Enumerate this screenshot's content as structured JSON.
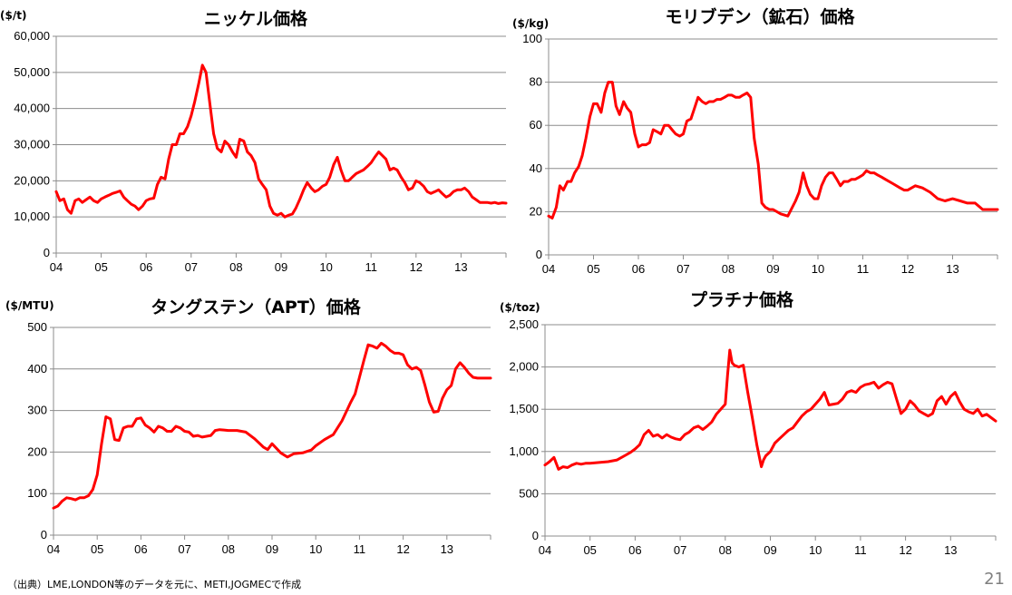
{
  "page": {
    "source": "（出典）LME,LONDON等のデータを元に、METI,JOGMECで作成",
    "page_number": "21"
  },
  "chart_data": [
    {
      "id": "nickel",
      "type": "line",
      "title": "ニッケル価格",
      "unit": "($/t)",
      "ylim": [
        0,
        60000
      ],
      "yticks": [
        0,
        10000,
        20000,
        30000,
        40000,
        50000,
        60000
      ],
      "ytick_labels": [
        "0",
        "10,000",
        "20,000",
        "30,000",
        "40,000",
        "50,000",
        "60,000"
      ],
      "xlim": [
        2004,
        2014
      ],
      "xticks": [
        2004,
        2005,
        2006,
        2007,
        2008,
        2009,
        2010,
        2011,
        2012,
        2013
      ],
      "xtick_labels": [
        "04",
        "05",
        "06",
        "07",
        "08",
        "09",
        "10",
        "11",
        "12",
        "13"
      ],
      "grid": true,
      "color": "#ff0000",
      "series": [
        {
          "x": [
            2004.0,
            2004.08,
            2004.17,
            2004.25,
            2004.33,
            2004.42,
            2004.5,
            2004.58,
            2004.67,
            2004.75,
            2004.83,
            2004.92,
            2005.0,
            2005.08,
            2005.17,
            2005.25,
            2005.33,
            2005.42,
            2005.5,
            2005.58,
            2005.67,
            2005.75,
            2005.83,
            2005.92,
            2006.0,
            2006.08,
            2006.17,
            2006.25,
            2006.33,
            2006.42,
            2006.5,
            2006.58,
            2006.67,
            2006.75,
            2006.83,
            2006.92,
            2007.0,
            2007.08,
            2007.17,
            2007.25,
            2007.33,
            2007.42,
            2007.5,
            2007.58,
            2007.67,
            2007.75,
            2007.83,
            2007.92,
            2008.0,
            2008.08,
            2008.17,
            2008.25,
            2008.33,
            2008.42,
            2008.5,
            2008.58,
            2008.67,
            2008.75,
            2008.83,
            2008.92,
            2009.0,
            2009.08,
            2009.17,
            2009.25,
            2009.33,
            2009.42,
            2009.5,
            2009.58,
            2009.67,
            2009.75,
            2009.83,
            2009.92,
            2010.0,
            2010.08,
            2010.17,
            2010.25,
            2010.33,
            2010.42,
            2010.5,
            2010.58,
            2010.67,
            2010.75,
            2010.83,
            2010.92,
            2011.0,
            2011.08,
            2011.17,
            2011.25,
            2011.33,
            2011.42,
            2011.5,
            2011.58,
            2011.67,
            2011.75,
            2011.83,
            2011.92,
            2012.0,
            2012.08,
            2012.17,
            2012.25,
            2012.33,
            2012.42,
            2012.5,
            2012.58,
            2012.67,
            2012.75,
            2012.83,
            2012.92,
            2013.0,
            2013.08,
            2013.17,
            2013.25,
            2013.33,
            2013.42,
            2013.5,
            2013.58,
            2013.67,
            2013.75,
            2013.83,
            2013.92,
            2014.0
          ],
          "y": [
            17000,
            14500,
            15000,
            12000,
            11000,
            14500,
            15000,
            14000,
            14800,
            15500,
            14500,
            14000,
            15000,
            15500,
            16000,
            16500,
            16800,
            17200,
            15500,
            14500,
            13500,
            13000,
            12000,
            13000,
            14500,
            15000,
            15200,
            19000,
            21000,
            20500,
            26000,
            30000,
            30000,
            33000,
            33000,
            35000,
            38000,
            42000,
            47000,
            52000,
            50000,
            41000,
            33000,
            29000,
            28000,
            31000,
            30000,
            28000,
            26500,
            31500,
            31000,
            28000,
            27000,
            25000,
            20500,
            19000,
            17500,
            13000,
            11000,
            10500,
            11000,
            10000,
            10500,
            10800,
            12500,
            15000,
            17500,
            19500,
            18000,
            17000,
            17500,
            18500,
            19000,
            21000,
            24500,
            26500,
            23000,
            20000,
            20000,
            21000,
            22000,
            22500,
            23000,
            24000,
            25000,
            26500,
            28000,
            27000,
            26000,
            23000,
            23500,
            23000,
            21000,
            19500,
            17500,
            18000,
            20000,
            19500,
            18500,
            17000,
            16500,
            17000,
            17500,
            16500,
            15500,
            16000,
            17000,
            17500,
            17500,
            18000,
            17000,
            15500,
            14800,
            14000,
            14000,
            14000,
            13800,
            14000,
            13700,
            13900,
            13800
          ]
        }
      ]
    },
    {
      "id": "molybdenum",
      "type": "line",
      "title": "モリブデン（鉱石）価格",
      "unit": "($/kg)",
      "ylim": [
        0,
        100
      ],
      "yticks": [
        0,
        20,
        40,
        60,
        80,
        100
      ],
      "ytick_labels": [
        "0",
        "20",
        "40",
        "60",
        "80",
        "100"
      ],
      "xlim": [
        2004,
        2014
      ],
      "xticks": [
        2004,
        2005,
        2006,
        2007,
        2008,
        2009,
        2010,
        2011,
        2012,
        2013
      ],
      "xtick_labels": [
        "04",
        "05",
        "06",
        "07",
        "08",
        "09",
        "10",
        "11",
        "12",
        "13"
      ],
      "grid": true,
      "color": "#ff0000",
      "series": [
        {
          "x": [
            2004.0,
            2004.08,
            2004.17,
            2004.25,
            2004.33,
            2004.42,
            2004.5,
            2004.58,
            2004.67,
            2004.75,
            2004.83,
            2004.92,
            2005.0,
            2005.08,
            2005.17,
            2005.25,
            2005.33,
            2005.42,
            2005.5,
            2005.58,
            2005.67,
            2005.75,
            2005.83,
            2005.92,
            2006.0,
            2006.08,
            2006.17,
            2006.25,
            2006.33,
            2006.42,
            2006.5,
            2006.58,
            2006.67,
            2006.75,
            2006.83,
            2006.92,
            2007.0,
            2007.08,
            2007.17,
            2007.25,
            2007.33,
            2007.42,
            2007.5,
            2007.58,
            2007.67,
            2007.75,
            2007.83,
            2007.92,
            2008.0,
            2008.08,
            2008.17,
            2008.25,
            2008.33,
            2008.42,
            2008.5,
            2008.58,
            2008.67,
            2008.75,
            2008.83,
            2008.92,
            2009.0,
            2009.17,
            2009.33,
            2009.5,
            2009.58,
            2009.67,
            2009.75,
            2009.83,
            2009.92,
            2010.0,
            2010.08,
            2010.17,
            2010.25,
            2010.33,
            2010.42,
            2010.5,
            2010.58,
            2010.67,
            2010.75,
            2010.83,
            2010.92,
            2011.0,
            2011.08,
            2011.17,
            2011.25,
            2011.33,
            2011.42,
            2011.5,
            2011.67,
            2011.83,
            2011.92,
            2012.0,
            2012.17,
            2012.33,
            2012.5,
            2012.67,
            2012.83,
            2013.0,
            2013.17,
            2013.33,
            2013.5,
            2013.67,
            2013.83,
            2014.0
          ],
          "y": [
            18,
            17,
            22,
            32,
            30,
            34,
            34,
            38,
            41,
            46,
            54,
            64,
            70,
            70,
            66,
            75,
            80,
            80,
            69,
            65,
            71,
            68,
            66,
            56,
            50,
            51,
            51,
            52,
            58,
            57,
            56,
            60,
            60,
            58,
            56,
            55,
            56,
            62,
            63,
            68,
            73,
            71,
            70,
            71,
            71,
            72,
            72,
            73,
            74,
            74,
            73,
            73,
            74,
            75,
            73,
            54,
            42,
            24,
            22,
            21,
            21,
            19,
            18,
            25,
            29,
            38,
            32,
            28,
            26,
            26,
            32,
            36,
            38,
            38,
            35,
            32,
            34,
            34,
            35,
            35,
            36,
            37,
            39,
            38,
            38,
            37,
            36,
            35,
            33,
            31,
            30,
            30,
            32,
            31,
            29,
            26,
            25,
            26,
            25,
            24,
            24,
            21,
            21,
            21
          ]
        }
      ]
    },
    {
      "id": "tungsten",
      "type": "line",
      "title": "タングステン（APT）価格",
      "unit": "($/MTU)",
      "ylim": [
        0,
        500
      ],
      "yticks": [
        0,
        100,
        200,
        300,
        400,
        500
      ],
      "ytick_labels": [
        "0",
        "100",
        "200",
        "300",
        "400",
        "500"
      ],
      "xlim": [
        2004,
        2014
      ],
      "xticks": [
        2004,
        2005,
        2006,
        2007,
        2008,
        2009,
        2010,
        2011,
        2012,
        2013
      ],
      "xtick_labels": [
        "04",
        "05",
        "06",
        "07",
        "08",
        "09",
        "10",
        "11",
        "12",
        "13"
      ],
      "grid": true,
      "color": "#ff0000",
      "series": [
        {
          "x": [
            2004.0,
            2004.1,
            2004.2,
            2004.3,
            2004.4,
            2004.5,
            2004.6,
            2004.7,
            2004.8,
            2004.9,
            2005.0,
            2005.1,
            2005.2,
            2005.3,
            2005.4,
            2005.5,
            2005.6,
            2005.7,
            2005.8,
            2005.9,
            2006.0,
            2006.1,
            2006.2,
            2006.3,
            2006.4,
            2006.5,
            2006.6,
            2006.7,
            2006.8,
            2006.9,
            2007.0,
            2007.1,
            2007.2,
            2007.3,
            2007.4,
            2007.5,
            2007.6,
            2007.7,
            2007.8,
            2007.9,
            2008.0,
            2008.2,
            2008.4,
            2008.6,
            2008.8,
            2008.9,
            2009.0,
            2009.2,
            2009.35,
            2009.5,
            2009.7,
            2009.9,
            2010.0,
            2010.2,
            2010.4,
            2010.6,
            2010.8,
            2010.9,
            2011.0,
            2011.1,
            2011.2,
            2011.3,
            2011.4,
            2011.5,
            2011.6,
            2011.7,
            2011.8,
            2011.9,
            2012.0,
            2012.1,
            2012.2,
            2012.3,
            2012.4,
            2012.5,
            2012.6,
            2012.7,
            2012.8,
            2012.9,
            2013.0,
            2013.1,
            2013.2,
            2013.3,
            2013.4,
            2013.5,
            2013.6,
            2013.7,
            2013.8,
            2013.9,
            2014.0
          ],
          "y": [
            65,
            70,
            82,
            90,
            88,
            85,
            90,
            90,
            95,
            110,
            145,
            220,
            285,
            280,
            230,
            228,
            258,
            262,
            262,
            280,
            282,
            265,
            258,
            248,
            262,
            258,
            250,
            250,
            262,
            258,
            250,
            248,
            238,
            240,
            236,
            238,
            240,
            252,
            254,
            253,
            252,
            252,
            248,
            232,
            212,
            206,
            220,
            198,
            188,
            196,
            198,
            205,
            215,
            230,
            242,
            275,
            320,
            340,
            380,
            420,
            458,
            455,
            450,
            462,
            455,
            445,
            438,
            438,
            434,
            410,
            400,
            404,
            396,
            360,
            320,
            296,
            298,
            330,
            350,
            360,
            400,
            415,
            404,
            390,
            380,
            378,
            378,
            378,
            378
          ]
        }
      ]
    },
    {
      "id": "platinum",
      "type": "line",
      "title": "プラチナ価格",
      "unit": "($/toz)",
      "ylim": [
        0,
        2500
      ],
      "yticks": [
        0,
        500,
        1000,
        1500,
        2000,
        2500
      ],
      "ytick_labels": [
        "0",
        "500",
        "1,000",
        "1,500",
        "2,000",
        "2,500"
      ],
      "xlim": [
        2004,
        2014
      ],
      "xticks": [
        2004,
        2005,
        2006,
        2007,
        2008,
        2009,
        2010,
        2011,
        2012,
        2013
      ],
      "xtick_labels": [
        "04",
        "05",
        "06",
        "07",
        "08",
        "09",
        "10",
        "11",
        "12",
        "13"
      ],
      "grid": true,
      "color": "#ff0000",
      "series": [
        {
          "x": [
            2004.0,
            2004.1,
            2004.2,
            2004.3,
            2004.4,
            2004.5,
            2004.6,
            2004.7,
            2004.8,
            2004.9,
            2005.0,
            2005.2,
            2005.4,
            2005.6,
            2005.8,
            2005.9,
            2006.0,
            2006.1,
            2006.2,
            2006.3,
            2006.4,
            2006.5,
            2006.6,
            2006.7,
            2006.8,
            2006.9,
            2007.0,
            2007.1,
            2007.2,
            2007.3,
            2007.4,
            2007.5,
            2007.6,
            2007.7,
            2007.8,
            2007.9,
            2008.0,
            2008.05,
            2008.1,
            2008.15,
            2008.2,
            2008.3,
            2008.4,
            2008.5,
            2008.55,
            2008.6,
            2008.7,
            2008.8,
            2008.85,
            2008.9,
            2009.0,
            2009.1,
            2009.2,
            2009.3,
            2009.4,
            2009.5,
            2009.6,
            2009.7,
            2009.8,
            2009.9,
            2010.0,
            2010.1,
            2010.2,
            2010.3,
            2010.4,
            2010.5,
            2010.6,
            2010.7,
            2010.8,
            2010.9,
            2011.0,
            2011.1,
            2011.2,
            2011.3,
            2011.4,
            2011.5,
            2011.6,
            2011.7,
            2011.8,
            2011.9,
            2012.0,
            2012.1,
            2012.2,
            2012.3,
            2012.4,
            2012.5,
            2012.6,
            2012.7,
            2012.8,
            2012.9,
            2013.0,
            2013.1,
            2013.2,
            2013.3,
            2013.4,
            2013.5,
            2013.6,
            2013.7,
            2013.8,
            2013.9,
            2014.0
          ],
          "y": [
            840,
            880,
            930,
            790,
            820,
            810,
            840,
            860,
            850,
            860,
            860,
            870,
            880,
            900,
            960,
            990,
            1030,
            1080,
            1200,
            1250,
            1180,
            1200,
            1160,
            1200,
            1170,
            1150,
            1140,
            1200,
            1230,
            1280,
            1300,
            1260,
            1300,
            1350,
            1440,
            1500,
            1560,
            1900,
            2200,
            2050,
            2020,
            2000,
            2020,
            1700,
            1550,
            1400,
            1080,
            820,
            900,
            950,
            1000,
            1100,
            1150,
            1200,
            1250,
            1280,
            1350,
            1420,
            1470,
            1500,
            1560,
            1620,
            1700,
            1550,
            1560,
            1570,
            1620,
            1700,
            1720,
            1700,
            1760,
            1790,
            1800,
            1820,
            1750,
            1790,
            1820,
            1800,
            1620,
            1450,
            1500,
            1600,
            1550,
            1480,
            1450,
            1420,
            1450,
            1600,
            1650,
            1560,
            1650,
            1700,
            1590,
            1500,
            1470,
            1450,
            1500,
            1420,
            1440,
            1400,
            1360
          ]
        }
      ]
    }
  ]
}
